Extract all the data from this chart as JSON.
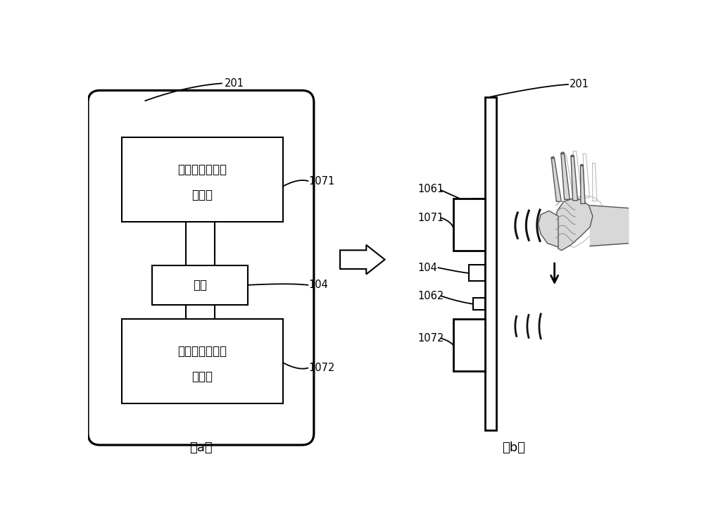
{
  "bg_color": "#ffffff",
  "line_color": "#000000",
  "title_a": "（a）",
  "title_b": "（b）",
  "label_201_a": "201",
  "label_1071_a": "1071",
  "label_104_a": "104",
  "label_1072_a": "1072",
  "label_201_b": "201",
  "label_1061_b": "1061",
  "label_1071_b": "1071",
  "label_104_b": "104",
  "label_1062_b": "1062",
  "label_1072_b": "1072",
  "box1_line1": "第一陶瓷扬声器",
  "box1_line2": "激励器",
  "box2_text": "馈点",
  "box3_line1": "第二陶瓷扬声器",
  "box3_line2": "激励器",
  "font_size_chinese": 12,
  "font_size_label": 10.5
}
